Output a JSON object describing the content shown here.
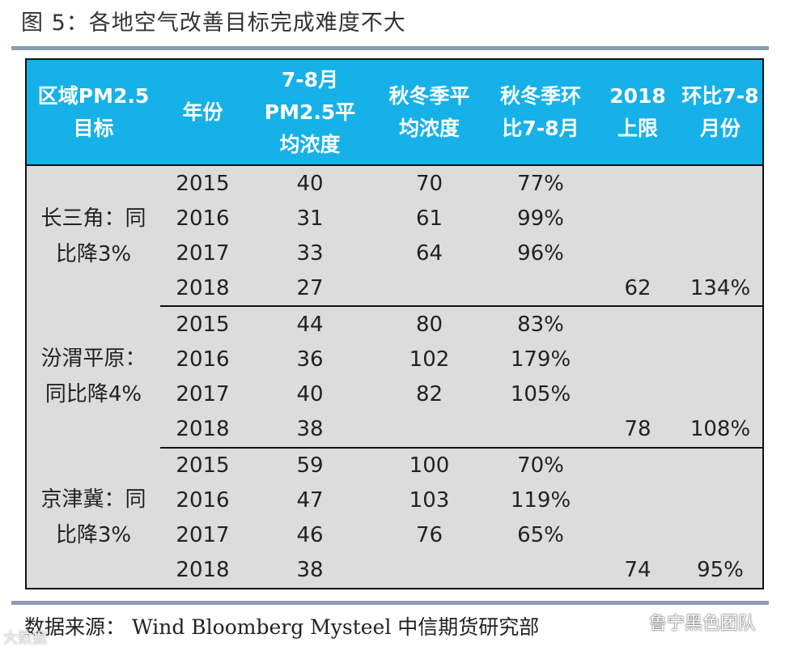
{
  "title": "图 5：各地空气改善目标完成难度不大",
  "table": {
    "headers": [
      [
        "区域PM2.5",
        "目标"
      ],
      [
        "年份"
      ],
      [
        "7-8月",
        "PM2.5平",
        "均浓度"
      ],
      [
        "秋冬季平",
        "均浓度"
      ],
      [
        "秋冬季环",
        "比7-8月"
      ],
      [
        "2018",
        "上限"
      ],
      [
        "环比7-8",
        "月份"
      ]
    ],
    "groups": [
      {
        "region": [
          "长三角：同",
          "比降3%"
        ],
        "rows": [
          {
            "year": "2015",
            "pm_summer": "40",
            "pm_winter": "70",
            "ratio": "77%",
            "cap": "",
            "cap_ratio": ""
          },
          {
            "year": "2016",
            "pm_summer": "31",
            "pm_winter": "61",
            "ratio": "99%",
            "cap": "",
            "cap_ratio": ""
          },
          {
            "year": "2017",
            "pm_summer": "33",
            "pm_winter": "64",
            "ratio": "96%",
            "cap": "",
            "cap_ratio": ""
          },
          {
            "year": "2018",
            "pm_summer": "27",
            "pm_winter": "",
            "ratio": "",
            "cap": "62",
            "cap_ratio": "134%"
          }
        ]
      },
      {
        "region": [
          "汾渭平原：",
          "同比降4%"
        ],
        "rows": [
          {
            "year": "2015",
            "pm_summer": "44",
            "pm_winter": "80",
            "ratio": "83%",
            "cap": "",
            "cap_ratio": ""
          },
          {
            "year": "2016",
            "pm_summer": "36",
            "pm_winter": "102",
            "ratio": "179%",
            "cap": "",
            "cap_ratio": ""
          },
          {
            "year": "2017",
            "pm_summer": "40",
            "pm_winter": "82",
            "ratio": "105%",
            "cap": "",
            "cap_ratio": ""
          },
          {
            "year": "2018",
            "pm_summer": "38",
            "pm_winter": "",
            "ratio": "",
            "cap": "78",
            "cap_ratio": "108%"
          }
        ]
      },
      {
        "region": [
          "京津冀：同",
          "比降3%"
        ],
        "rows": [
          {
            "year": "2015",
            "pm_summer": "59",
            "pm_winter": "100",
            "ratio": "70%",
            "cap": "",
            "cap_ratio": ""
          },
          {
            "year": "2016",
            "pm_summer": "47",
            "pm_winter": "103",
            "ratio": "119%",
            "cap": "",
            "cap_ratio": ""
          },
          {
            "year": "2017",
            "pm_summer": "46",
            "pm_winter": "76",
            "ratio": "65%",
            "cap": "",
            "cap_ratio": ""
          },
          {
            "year": "2018",
            "pm_summer": "38",
            "pm_winter": "",
            "ratio": "",
            "cap": "74",
            "cap_ratio": "95%"
          }
        ]
      }
    ]
  },
  "source": {
    "prefix": "数据来源：",
    "en": "Wind Bloomberg Mysteel",
    "suffix": "中信期货研究部"
  },
  "wechat_label": "鲁宁黑色团队",
  "watermark": "大数据"
}
